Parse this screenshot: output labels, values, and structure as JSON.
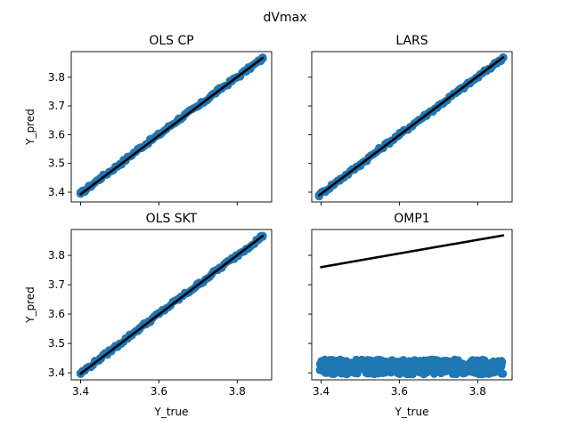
{
  "figure": {
    "suptitle": "dVmax"
  },
  "colors": {
    "scatter": "#1f77b4",
    "fit_line": "#000000"
  },
  "chart_data": [
    {
      "type": "scatter",
      "title": "OLS CP",
      "xlabel": "",
      "ylabel": "Y_pred",
      "xlim": [
        3.376,
        3.888
      ],
      "ylim": [
        3.366,
        3.889
      ],
      "xticks": [
        3.4,
        3.6,
        3.8
      ],
      "xtick_labels": [
        "",
        "",
        ""
      ],
      "yticks": [
        3.4,
        3.5,
        3.6,
        3.7,
        3.8
      ],
      "ytick_labels": [
        "3.4",
        "3.5",
        "3.6",
        "3.7",
        "3.8"
      ],
      "grid": false,
      "series": [
        {
          "kind": "scatter",
          "color": "#1f77b4",
          "x": [
            3.4,
            3.45,
            3.5,
            3.55,
            3.6,
            3.65,
            3.7,
            3.75,
            3.8,
            3.865
          ],
          "y": [
            3.395,
            3.448,
            3.497,
            3.552,
            3.6,
            3.653,
            3.699,
            3.752,
            3.8,
            3.865
          ]
        },
        {
          "kind": "line",
          "color": "#000000",
          "x": [
            3.4,
            3.865
          ],
          "y": [
            3.393,
            3.867
          ]
        }
      ]
    },
    {
      "type": "scatter",
      "title": "LARS",
      "xlabel": "",
      "ylabel": "",
      "xlim": [
        3.376,
        3.888
      ],
      "ylim": [
        3.366,
        3.889
      ],
      "xticks": [
        3.4,
        3.6,
        3.8
      ],
      "xtick_labels": [
        "",
        "",
        ""
      ],
      "yticks": [
        3.4,
        3.5,
        3.6,
        3.7,
        3.8
      ],
      "ytick_labels": [
        "",
        "",
        "",
        "",
        ""
      ],
      "grid": false,
      "series": [
        {
          "kind": "scatter",
          "color": "#1f77b4",
          "x": [
            3.395,
            3.45,
            3.5,
            3.55,
            3.6,
            3.65,
            3.7,
            3.75,
            3.8,
            3.865
          ],
          "y": [
            3.39,
            3.446,
            3.496,
            3.55,
            3.6,
            3.651,
            3.7,
            3.751,
            3.8,
            3.868
          ]
        },
        {
          "kind": "line",
          "color": "#000000",
          "x": [
            3.395,
            3.865
          ],
          "y": [
            3.389,
            3.869
          ]
        }
      ]
    },
    {
      "type": "scatter",
      "title": "OLS SKT",
      "xlabel": "Y_true",
      "ylabel": "Y_pred",
      "xlim": [
        3.376,
        3.888
      ],
      "ylim": [
        3.376,
        3.888
      ],
      "xticks": [
        3.4,
        3.6,
        3.8
      ],
      "xtick_labels": [
        "3.4",
        "3.6",
        "3.8"
      ],
      "yticks": [
        3.4,
        3.5,
        3.6,
        3.7,
        3.8
      ],
      "ytick_labels": [
        "3.4",
        "3.5",
        "3.6",
        "3.7",
        "3.8"
      ],
      "grid": false,
      "series": [
        {
          "kind": "scatter",
          "color": "#1f77b4",
          "x": [
            3.4,
            3.45,
            3.5,
            3.55,
            3.6,
            3.65,
            3.7,
            3.75,
            3.8,
            3.865
          ],
          "y": [
            3.398,
            3.449,
            3.499,
            3.551,
            3.601,
            3.651,
            3.7,
            3.751,
            3.8,
            3.866
          ]
        },
        {
          "kind": "line",
          "color": "#000000",
          "x": [
            3.4,
            3.865
          ],
          "y": [
            3.397,
            3.866
          ]
        }
      ]
    },
    {
      "type": "scatter",
      "title": "OMP1",
      "xlabel": "Y_true",
      "ylabel": "",
      "xlim": [
        3.376,
        3.888
      ],
      "ylim": [
        3.376,
        3.888
      ],
      "xticks": [
        3.4,
        3.6,
        3.8
      ],
      "xtick_labels": [
        "3.4",
        "3.6",
        "3.8"
      ],
      "yticks": [
        3.4,
        3.5,
        3.6,
        3.7,
        3.8
      ],
      "ytick_labels": [
        "",
        "",
        "",
        "",
        ""
      ],
      "grid": false,
      "series": [
        {
          "kind": "band",
          "color": "#1f77b4",
          "x": [
            3.395,
            3.865
          ],
          "y": [
            3.395,
            3.445
          ]
        },
        {
          "kind": "line",
          "color": "#000000",
          "x": [
            3.4,
            3.865
          ],
          "y": [
            3.76,
            3.868
          ]
        }
      ]
    }
  ]
}
